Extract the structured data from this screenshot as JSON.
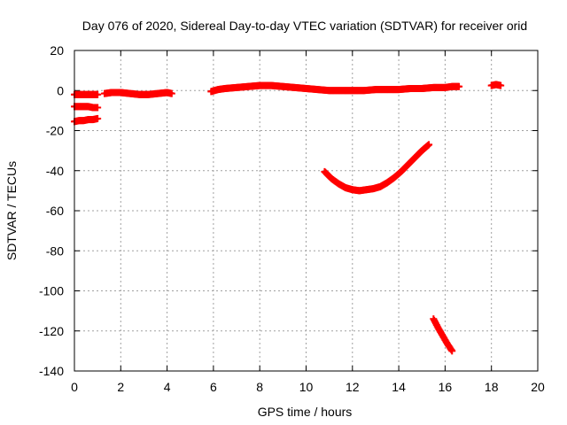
{
  "chart_data": {
    "type": "scatter",
    "title": "Day 076 of 2020, Sidereal Day-to-day VTEC variation (SDTVAR) for receiver orid",
    "xlabel": "GPS time / hours",
    "ylabel": "SDTVAR / TECUs",
    "xlim": [
      0,
      20
    ],
    "ylim": [
      -140,
      20
    ],
    "xticks": [
      0,
      2,
      4,
      6,
      8,
      10,
      12,
      14,
      16,
      18,
      20
    ],
    "yticks": [
      -140,
      -120,
      -100,
      -80,
      -60,
      -40,
      -20,
      0,
      20
    ],
    "grid": true,
    "legend": "none",
    "marker": "plus",
    "series_color": "#ff0000",
    "series": [
      {
        "segments": [
          {
            "x": [
              0.0,
              0.2,
              0.4,
              0.6,
              0.8,
              1.0
            ],
            "y": [
              -2,
              -2,
              -2,
              -2,
              -2,
              -2
            ]
          },
          {
            "x": [
              0.0,
              0.2,
              0.4,
              0.6,
              0.8,
              1.0
            ],
            "y": [
              -8,
              -8,
              -8,
              -8,
              -8.5,
              -8.5
            ]
          },
          {
            "x": [
              0.0,
              0.2,
              0.4,
              0.6,
              0.8,
              1.0
            ],
            "y": [
              -15.5,
              -15,
              -15,
              -14.5,
              -14.5,
              -14
            ]
          },
          {
            "x": [
              1.3,
              1.6,
              2.0,
              2.4,
              2.8,
              3.2,
              3.6,
              4.0,
              4.2
            ],
            "y": [
              -1.5,
              -1,
              -1,
              -1.5,
              -2,
              -2,
              -1.5,
              -1,
              -1.5
            ]
          },
          {
            "x": [
              5.9,
              6.2,
              6.5,
              7.0,
              7.5,
              8.0,
              8.5,
              9.0,
              9.5,
              10.0,
              10.5,
              11.0,
              11.5,
              12.0,
              12.5,
              13.0,
              13.5,
              14.0,
              14.5,
              15.0,
              15.5,
              16.0,
              16.3,
              16.6
            ],
            "y": [
              -0.5,
              0.5,
              1,
              1.5,
              2,
              2.5,
              2.5,
              2,
              1.5,
              1,
              0.5,
              0,
              0,
              0,
              0,
              0.5,
              0.5,
              0.5,
              1,
              1,
              1.5,
              1.5,
              2,
              2
            ]
          },
          {
            "x": [
              18.0,
              18.2,
              18.4
            ],
            "y": [
              2.5,
              3,
              2.5
            ]
          },
          {
            "x": [
              10.8,
              11.1,
              11.4,
              11.7,
              12.0,
              12.3,
              12.6,
              12.9,
              13.2,
              13.5,
              13.8,
              14.1,
              14.4,
              14.7,
              15.0,
              15.3
            ],
            "y": [
              -40.5,
              -44,
              -46.5,
              -48.5,
              -49.5,
              -50,
              -49.5,
              -49,
              -48,
              -46,
              -43.5,
              -40.5,
              -37,
              -33.5,
              -30,
              -27
            ]
          },
          {
            "x": [
              15.5,
              15.7,
              15.9,
              16.1,
              16.3
            ],
            "y": [
              -114,
              -118.5,
              -122.5,
              -126.5,
              -130
            ]
          }
        ]
      }
    ]
  }
}
